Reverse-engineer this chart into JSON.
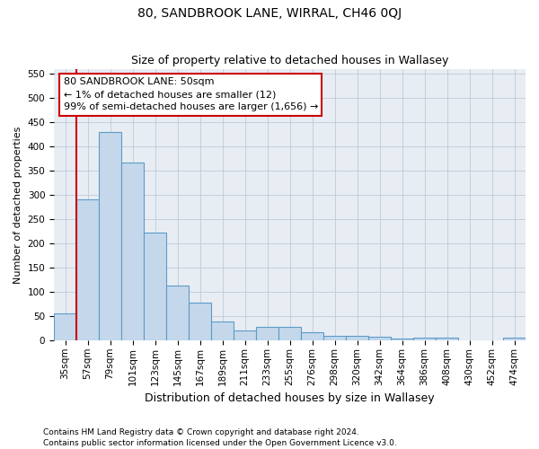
{
  "title": "80, SANDBROOK LANE, WIRRAL, CH46 0QJ",
  "subtitle": "Size of property relative to detached houses in Wallasey",
  "xlabel": "Distribution of detached houses by size in Wallasey",
  "ylabel": "Number of detached properties",
  "footnote1": "Contains HM Land Registry data © Crown copyright and database right 2024.",
  "footnote2": "Contains public sector information licensed under the Open Government Licence v3.0.",
  "annotation_line1": "80 SANDBROOK LANE: 50sqm",
  "annotation_line2": "← 1% of detached houses are smaller (12)",
  "annotation_line3": "99% of semi-detached houses are larger (1,656) →",
  "bar_color": "#c5d8eb",
  "bar_edge_color": "#5b9bc8",
  "highlight_line_color": "#cc0000",
  "annotation_box_edge_color": "#cc0000",
  "plot_bg_color": "#e8edf4",
  "fig_bg_color": "#ffffff",
  "grid_color": "#c0cad8",
  "categories": [
    "35sqm",
    "57sqm",
    "79sqm",
    "101sqm",
    "123sqm",
    "145sqm",
    "167sqm",
    "189sqm",
    "211sqm",
    "233sqm",
    "255sqm",
    "276sqm",
    "298sqm",
    "320sqm",
    "342sqm",
    "364sqm",
    "386sqm",
    "408sqm",
    "430sqm",
    "452sqm",
    "474sqm"
  ],
  "values": [
    55,
    292,
    430,
    367,
    222,
    113,
    77,
    38,
    20,
    28,
    28,
    16,
    10,
    10,
    8,
    4,
    5,
    5,
    0,
    0,
    5
  ],
  "ylim": [
    0,
    560
  ],
  "yticks": [
    0,
    50,
    100,
    150,
    200,
    250,
    300,
    350,
    400,
    450,
    500,
    550
  ],
  "red_line_x": 0.5,
  "title_fontsize": 10,
  "subtitle_fontsize": 9,
  "ylabel_fontsize": 8,
  "xlabel_fontsize": 9,
  "tick_fontsize": 7.5,
  "annotation_fontsize": 8,
  "footnote_fontsize": 6.5
}
